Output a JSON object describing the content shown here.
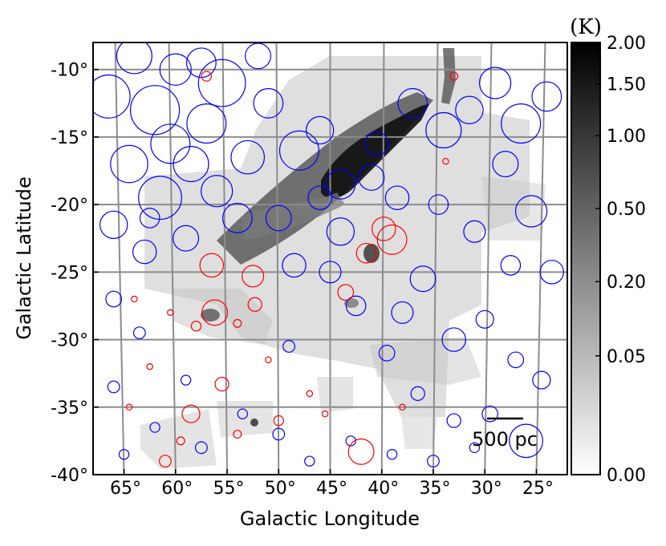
{
  "chart_data": {
    "type": "scatter",
    "xlabel": "Galactic Longitude",
    "ylabel": "Galactic Latitude",
    "xlim": [
      68,
      22
    ],
    "ylim": [
      -40,
      -8
    ],
    "x_ticks": [
      {
        "value": 65,
        "label": "65°"
      },
      {
        "value": 60,
        "label": "60°"
      },
      {
        "value": 55,
        "label": "55°"
      },
      {
        "value": 50,
        "label": "50°"
      },
      {
        "value": 45,
        "label": "45°"
      },
      {
        "value": 40,
        "label": "40°"
      },
      {
        "value": 35,
        "label": "35°"
      },
      {
        "value": 30,
        "label": "30°"
      },
      {
        "value": 25,
        "label": "25°"
      }
    ],
    "y_ticks": [
      {
        "value": -10,
        "label": "-10°"
      },
      {
        "value": -15,
        "label": "-15°"
      },
      {
        "value": -20,
        "label": "-20°"
      },
      {
        "value": -25,
        "label": "-25°"
      },
      {
        "value": -30,
        "label": "-30°"
      },
      {
        "value": -35,
        "label": "-35°"
      },
      {
        "value": -40,
        "label": "-40°"
      }
    ],
    "grid": true,
    "background_map": "grayscale brightness-temperature map (CO emission)",
    "colorbar": {
      "unit": "(K)",
      "range": [
        0,
        2
      ],
      "ticks": [
        {
          "value": 2.0,
          "label": "2.00"
        },
        {
          "value": 1.5,
          "label": "1.50"
        },
        {
          "value": 1.0,
          "label": "1.00"
        },
        {
          "value": 0.5,
          "label": "0.50"
        },
        {
          "value": 0.2,
          "label": "0.20"
        },
        {
          "value": 0.05,
          "label": "0.05"
        },
        {
          "value": 0.0,
          "label": "0.00"
        }
      ],
      "colors": [
        "#ffffff",
        "#000000"
      ]
    },
    "scale_bar": {
      "label": "500 pc"
    },
    "series": [
      {
        "color": "#0000ff",
        "marker": "open-circle",
        "points": [
          [
            66.5,
            -12.0,
            2.2
          ],
          [
            64.0,
            -9.0,
            1.8
          ],
          [
            62.0,
            -13.0,
            2.5
          ],
          [
            60.0,
            -10.0,
            1.6
          ],
          [
            57.0,
            -14.0,
            2.0
          ],
          [
            55.5,
            -11.0,
            2.4
          ],
          [
            53.0,
            -16.5,
            1.7
          ],
          [
            51.0,
            -12.5,
            1.5
          ],
          [
            48.0,
            -16.0,
            2.0
          ],
          [
            46.0,
            -14.5,
            1.4
          ],
          [
            64.5,
            -17.0,
            1.9
          ],
          [
            61.5,
            -19.5,
            2.2
          ],
          [
            58.5,
            -17.0,
            1.8
          ],
          [
            56.0,
            -19.0,
            1.6
          ],
          [
            54.0,
            -21.0,
            1.5
          ],
          [
            66.0,
            -21.5,
            1.4
          ],
          [
            63.0,
            -23.5,
            1.2
          ],
          [
            59.0,
            -22.5,
            1.3
          ],
          [
            50.0,
            -21.0,
            1.3
          ],
          [
            46.0,
            -19.5,
            1.2
          ],
          [
            44.0,
            -18.5,
            1.5
          ],
          [
            41.0,
            -18.0,
            1.3
          ],
          [
            38.5,
            -19.5,
            1.2
          ],
          [
            37.0,
            -12.5,
            1.5
          ],
          [
            34.0,
            -14.5,
            1.8
          ],
          [
            31.5,
            -13.0,
            1.4
          ],
          [
            29.0,
            -11.0,
            1.6
          ],
          [
            26.5,
            -14.0,
            2.0
          ],
          [
            24.0,
            -12.0,
            1.5
          ],
          [
            28.0,
            -17.0,
            1.3
          ],
          [
            25.5,
            -20.5,
            1.6
          ],
          [
            23.5,
            -25.0,
            1.2
          ],
          [
            27.5,
            -24.5,
            1.0
          ],
          [
            31.0,
            -22.0,
            1.1
          ],
          [
            34.5,
            -20.0,
            1.0
          ],
          [
            36.0,
            -25.5,
            1.3
          ],
          [
            38.0,
            -28.0,
            1.1
          ],
          [
            33.0,
            -30.0,
            1.2
          ],
          [
            30.0,
            -28.5,
            0.9
          ],
          [
            27.0,
            -31.5,
            0.8
          ],
          [
            24.5,
            -33.0,
            0.9
          ],
          [
            26.0,
            -37.5,
            1.7
          ],
          [
            29.5,
            -35.5,
            0.8
          ],
          [
            33.0,
            -36.0,
            0.7
          ],
          [
            36.5,
            -34.0,
            0.7
          ],
          [
            39.5,
            -31.0,
            0.8
          ],
          [
            42.5,
            -27.5,
            1.0
          ],
          [
            45.0,
            -25.0,
            1.1
          ],
          [
            48.5,
            -24.5,
            1.2
          ],
          [
            44.0,
            -22.0,
            1.4
          ],
          [
            40.5,
            -15.5,
            1.2
          ],
          [
            52.0,
            -9.0,
            1.3
          ],
          [
            57.5,
            -9.5,
            1.5
          ],
          [
            60.5,
            -15.5,
            2.0
          ],
          [
            62.5,
            -21.0,
            1.0
          ],
          [
            66.0,
            -27.0,
            0.8
          ],
          [
            63.5,
            -29.5,
            0.6
          ],
          [
            66.0,
            -33.5,
            0.6
          ],
          [
            62.0,
            -36.5,
            0.5
          ],
          [
            59.0,
            -33.0,
            0.5
          ],
          [
            57.5,
            -38.0,
            0.6
          ],
          [
            53.5,
            -35.5,
            0.5
          ],
          [
            50.0,
            -37.0,
            0.6
          ],
          [
            47.0,
            -39.0,
            0.5
          ],
          [
            43.0,
            -37.5,
            0.5
          ],
          [
            39.0,
            -38.5,
            0.5
          ],
          [
            35.0,
            -39.0,
            0.6
          ],
          [
            31.0,
            -38.0,
            0.5
          ],
          [
            65.0,
            -38.5,
            0.5
          ],
          [
            49.0,
            -30.5,
            0.6
          ]
        ]
      },
      {
        "color": "#ff0000",
        "marker": "open-circle",
        "points": [
          [
            39.8,
            -21.8,
            1.2
          ],
          [
            39.0,
            -22.6,
            1.5
          ],
          [
            41.5,
            -23.6,
            1.0
          ],
          [
            56.5,
            -24.5,
            1.2
          ],
          [
            56.2,
            -28.0,
            1.3
          ],
          [
            52.5,
            -25.3,
            1.1
          ],
          [
            52.3,
            -27.4,
            0.7
          ],
          [
            43.5,
            -26.5,
            0.8
          ],
          [
            58.0,
            -29.0,
            0.5
          ],
          [
            54.0,
            -28.8,
            0.4
          ],
          [
            58.5,
            -35.5,
            0.9
          ],
          [
            55.5,
            -33.3,
            0.7
          ],
          [
            50.0,
            -36.0,
            0.5
          ],
          [
            42.0,
            -38.3,
            1.3
          ],
          [
            61.0,
            -39.0,
            0.6
          ],
          [
            59.5,
            -37.5,
            0.4
          ],
          [
            54.0,
            -37.0,
            0.4
          ],
          [
            47.0,
            -34.0,
            0.3
          ],
          [
            33.8,
            -16.8,
            0.3
          ],
          [
            33.0,
            -10.5,
            0.4
          ],
          [
            57.0,
            -10.5,
            0.5
          ],
          [
            64.0,
            -27.0,
            0.3
          ],
          [
            62.5,
            -32.0,
            0.3
          ],
          [
            51.0,
            -31.5,
            0.3
          ],
          [
            45.5,
            -35.5,
            0.3
          ],
          [
            38.0,
            -35.0,
            0.3
          ],
          [
            64.5,
            -35.0,
            0.3
          ],
          [
            60.5,
            -28.0,
            0.3
          ]
        ]
      }
    ]
  }
}
